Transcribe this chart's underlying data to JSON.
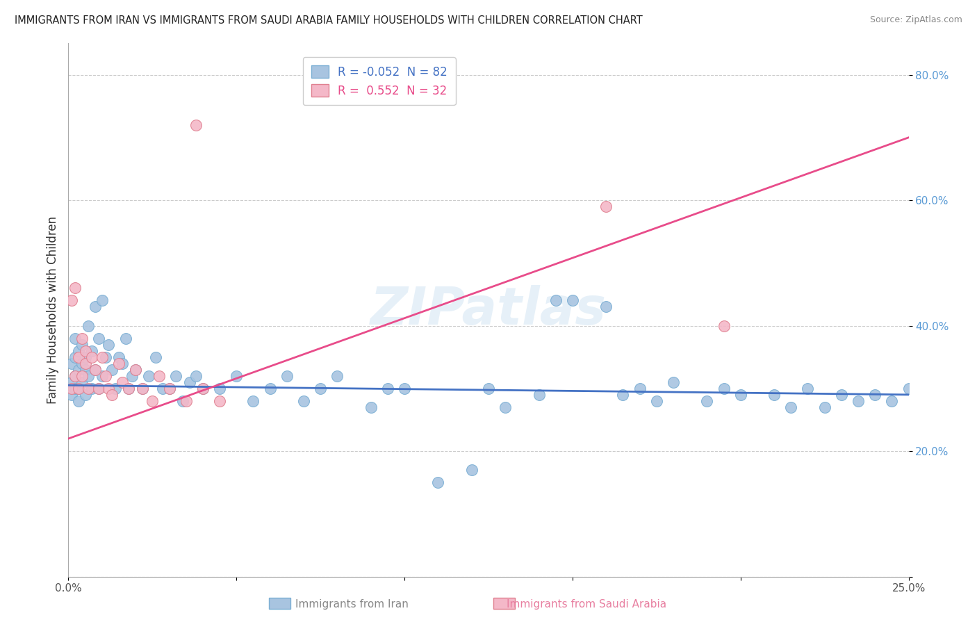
{
  "title": "IMMIGRANTS FROM IRAN VS IMMIGRANTS FROM SAUDI ARABIA FAMILY HOUSEHOLDS WITH CHILDREN CORRELATION CHART",
  "source": "Source: ZipAtlas.com",
  "ylabel": "Family Households with Children",
  "x_min": 0.0,
  "x_max": 0.25,
  "y_min": 0.0,
  "y_max": 0.85,
  "iran_color": "#a8c4e0",
  "iran_edge_color": "#7bafd4",
  "saudi_color": "#f4b8c8",
  "saudi_edge_color": "#e08090",
  "line_iran_color": "#4472c4",
  "line_saudi_color": "#e84c8a",
  "legend_iran_label": "R = -0.052  N = 82",
  "legend_saudi_label": "R =  0.552  N = 32",
  "iran_R": -0.052,
  "iran_N": 82,
  "saudi_R": 0.552,
  "saudi_N": 32,
  "iran_x": [
    0.001,
    0.001,
    0.001,
    0.002,
    0.002,
    0.002,
    0.002,
    0.003,
    0.003,
    0.003,
    0.003,
    0.004,
    0.004,
    0.004,
    0.005,
    0.005,
    0.005,
    0.006,
    0.006,
    0.007,
    0.007,
    0.008,
    0.008,
    0.009,
    0.009,
    0.01,
    0.01,
    0.011,
    0.012,
    0.013,
    0.014,
    0.015,
    0.016,
    0.017,
    0.018,
    0.019,
    0.02,
    0.022,
    0.024,
    0.026,
    0.028,
    0.03,
    0.032,
    0.034,
    0.036,
    0.038,
    0.04,
    0.045,
    0.05,
    0.055,
    0.06,
    0.065,
    0.07,
    0.075,
    0.08,
    0.09,
    0.095,
    0.1,
    0.11,
    0.12,
    0.125,
    0.13,
    0.14,
    0.145,
    0.15,
    0.16,
    0.165,
    0.17,
    0.175,
    0.18,
    0.19,
    0.195,
    0.2,
    0.21,
    0.215,
    0.22,
    0.225,
    0.23,
    0.235,
    0.24,
    0.245,
    0.25
  ],
  "iran_y": [
    0.31,
    0.34,
    0.29,
    0.35,
    0.32,
    0.3,
    0.38,
    0.28,
    0.33,
    0.36,
    0.3,
    0.34,
    0.37,
    0.31,
    0.35,
    0.29,
    0.33,
    0.4,
    0.32,
    0.36,
    0.3,
    0.43,
    0.33,
    0.38,
    0.3,
    0.44,
    0.32,
    0.35,
    0.37,
    0.33,
    0.3,
    0.35,
    0.34,
    0.38,
    0.3,
    0.32,
    0.33,
    0.3,
    0.32,
    0.35,
    0.3,
    0.3,
    0.32,
    0.28,
    0.31,
    0.32,
    0.3,
    0.3,
    0.32,
    0.28,
    0.3,
    0.32,
    0.28,
    0.3,
    0.32,
    0.27,
    0.3,
    0.3,
    0.15,
    0.17,
    0.3,
    0.27,
    0.29,
    0.44,
    0.44,
    0.43,
    0.29,
    0.3,
    0.28,
    0.31,
    0.28,
    0.3,
    0.29,
    0.29,
    0.27,
    0.3,
    0.27,
    0.29,
    0.28,
    0.29,
    0.28,
    0.3
  ],
  "saudi_x": [
    0.001,
    0.001,
    0.002,
    0.002,
    0.003,
    0.003,
    0.004,
    0.004,
    0.005,
    0.005,
    0.006,
    0.007,
    0.008,
    0.009,
    0.01,
    0.011,
    0.012,
    0.013,
    0.015,
    0.016,
    0.018,
    0.02,
    0.022,
    0.025,
    0.027,
    0.03,
    0.035,
    0.038,
    0.04,
    0.045,
    0.16,
    0.195
  ],
  "saudi_y": [
    0.3,
    0.44,
    0.32,
    0.46,
    0.35,
    0.3,
    0.38,
    0.32,
    0.36,
    0.34,
    0.3,
    0.35,
    0.33,
    0.3,
    0.35,
    0.32,
    0.3,
    0.29,
    0.34,
    0.31,
    0.3,
    0.33,
    0.3,
    0.28,
    0.32,
    0.3,
    0.28,
    0.72,
    0.3,
    0.28,
    0.59,
    0.4
  ],
  "iran_line_y0": 0.305,
  "iran_line_y1": 0.29,
  "saudi_line_y0": 0.22,
  "saudi_line_y1": 0.7
}
